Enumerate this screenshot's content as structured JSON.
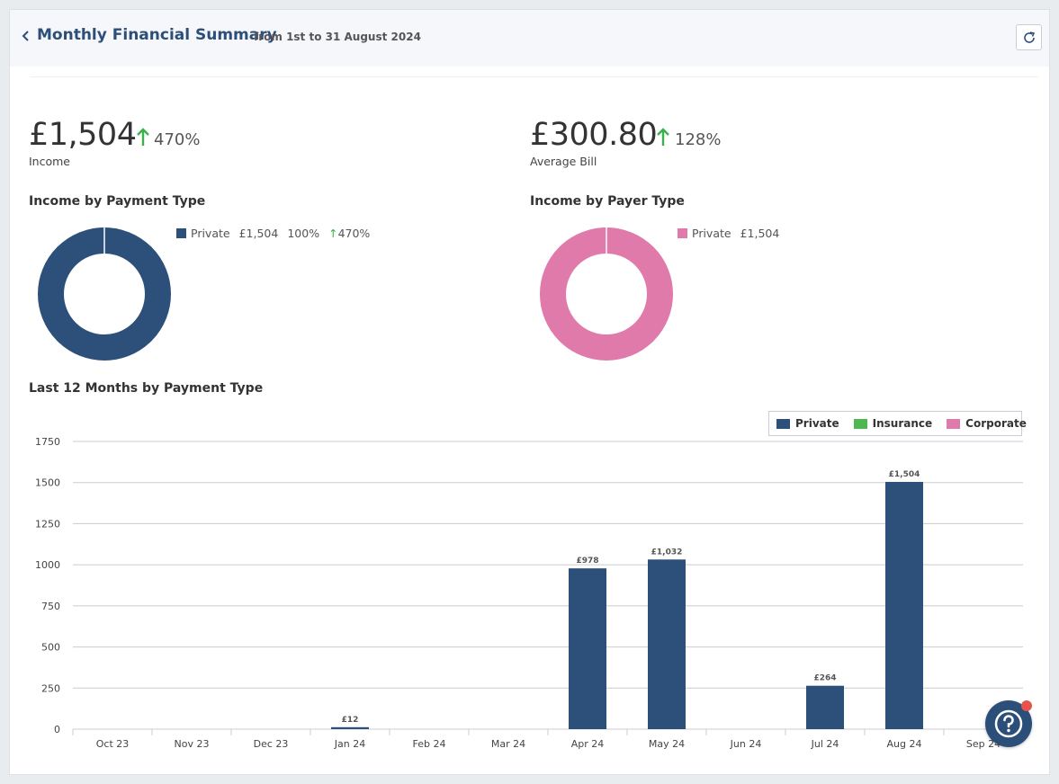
{
  "header": {
    "back_icon": "chevron-left-icon",
    "title": "Monthly Financial Summary",
    "subtitle": "from 1st to 31 August 2024",
    "refresh_icon": "refresh-icon"
  },
  "kpis": {
    "income": {
      "value": "£1,504",
      "change": "470%",
      "label": "Income",
      "trend": "up"
    },
    "average_bill": {
      "value": "£300.80",
      "change": "128%",
      "label": "Average Bill",
      "trend": "up"
    }
  },
  "income_by_payment_type": {
    "title": "Income by Payment Type",
    "legend": [
      {
        "name": "Private",
        "amount": "£1,504",
        "share": "100%",
        "change": "470%",
        "color": "#2c5079"
      }
    ]
  },
  "income_by_payer_type": {
    "title": "Income by Payer Type",
    "legend": [
      {
        "name": "Private",
        "amount": "£1,504",
        "color": "#e07aab"
      }
    ]
  },
  "colors": {
    "private": "#2c5079",
    "insurance": "#4cb84f",
    "corporate": "#e07aab",
    "positive": "#3cb04a",
    "brand": "#2c4f7a"
  },
  "chart_data": [
    {
      "type": "pie",
      "title": "Income by Payment Type",
      "donut": true,
      "slices": [
        {
          "name": "Private",
          "value": 1504,
          "share": 100
        }
      ]
    },
    {
      "type": "pie",
      "title": "Income by Payer Type",
      "donut": true,
      "slices": [
        {
          "name": "Private",
          "value": 1504,
          "share": 100
        }
      ]
    },
    {
      "type": "bar",
      "title": "Last 12 Months by Payment Type",
      "categories": [
        "Oct 23",
        "Nov 23",
        "Dec 23",
        "Jan 24",
        "Feb 24",
        "Mar 24",
        "Apr 24",
        "May 24",
        "Jun 24",
        "Jul 24",
        "Aug 24",
        "Sep 24"
      ],
      "series": [
        {
          "name": "Private",
          "values": [
            0,
            0,
            0,
            12,
            0,
            0,
            978,
            1032,
            0,
            264,
            1504,
            0
          ]
        },
        {
          "name": "Insurance",
          "values": [
            0,
            0,
            0,
            0,
            0,
            0,
            0,
            0,
            0,
            0,
            0,
            0
          ]
        },
        {
          "name": "Corporate",
          "values": [
            0,
            0,
            0,
            0,
            0,
            0,
            0,
            0,
            0,
            0,
            0,
            0
          ]
        }
      ],
      "data_labels": [
        "",
        "",
        "",
        "£12",
        "",
        "",
        "£978",
        "£1,032",
        "",
        "£264",
        "£1,504",
        ""
      ],
      "yticks": [
        0,
        250,
        500,
        750,
        1000,
        1250,
        1500,
        1750
      ],
      "ylim": [
        0,
        1750
      ],
      "legend_position": "top-right",
      "grid": true
    }
  ],
  "help": {
    "icon": "help-question-icon",
    "has_notification": true
  }
}
